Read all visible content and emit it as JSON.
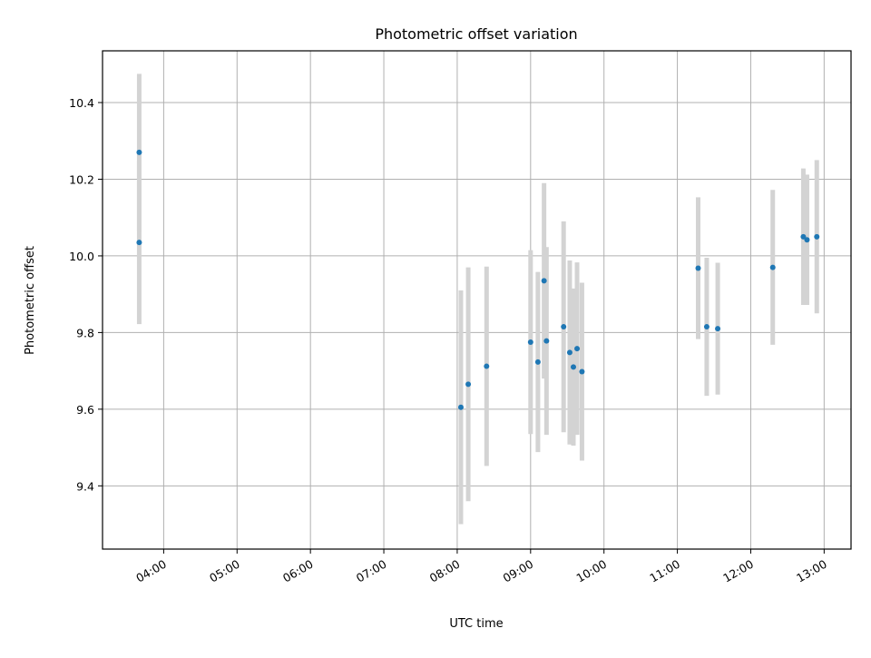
{
  "chart_data": {
    "type": "scatter",
    "title": "Photometric offset variation",
    "xlabel": "UTC time",
    "ylabel": "Photometric offset",
    "xlim": [
      "03:10",
      "13:22"
    ],
    "ylim": [
      9.235,
      10.535
    ],
    "grid": true,
    "x_ticks": [
      "04:00",
      "05:00",
      "06:00",
      "07:00",
      "08:00",
      "09:00",
      "10:00",
      "11:00",
      "12:00",
      "13:00"
    ],
    "y_ticks": [
      "9.4",
      "9.6",
      "9.8",
      "10.0",
      "10.2",
      "10.4"
    ],
    "colors": {
      "point": "#1f77b4",
      "errorbar": "#d3d3d3",
      "grid": "#b0b0b0"
    },
    "points": [
      {
        "x": "03:40",
        "y": 10.27,
        "yerr": 0.205
      },
      {
        "x": "03:40",
        "y": 10.035,
        "yerr": 0.213
      },
      {
        "x": "08:03",
        "y": 9.605,
        "yerr": 0.305
      },
      {
        "x": "08:09",
        "y": 9.665,
        "yerr": 0.305
      },
      {
        "x": "08:24",
        "y": 9.712,
        "yerr": 0.26
      },
      {
        "x": "09:00",
        "y": 9.775,
        "yerr": 0.24
      },
      {
        "x": "09:06",
        "y": 9.723,
        "yerr": 0.235
      },
      {
        "x": "09:11",
        "y": 9.935,
        "yerr": 0.255
      },
      {
        "x": "09:13",
        "y": 9.778,
        "yerr": 0.245
      },
      {
        "x": "09:27",
        "y": 9.815,
        "yerr": 0.275
      },
      {
        "x": "09:32",
        "y": 9.748,
        "yerr": 0.24
      },
      {
        "x": "09:35",
        "y": 9.71,
        "yerr": 0.205
      },
      {
        "x": "09:38",
        "y": 9.758,
        "yerr": 0.225
      },
      {
        "x": "09:42",
        "y": 9.698,
        "yerr": 0.232
      },
      {
        "x": "11:17",
        "y": 9.968,
        "yerr": 0.185
      },
      {
        "x": "11:24",
        "y": 9.815,
        "yerr": 0.18
      },
      {
        "x": "11:33",
        "y": 9.81,
        "yerr": 0.172
      },
      {
        "x": "12:18",
        "y": 9.97,
        "yerr": 0.202
      },
      {
        "x": "12:43",
        "y": 10.05,
        "yerr": 0.178
      },
      {
        "x": "12:46",
        "y": 10.042,
        "yerr": 0.17
      },
      {
        "x": "12:54",
        "y": 10.05,
        "yerr": 0.2
      }
    ]
  }
}
